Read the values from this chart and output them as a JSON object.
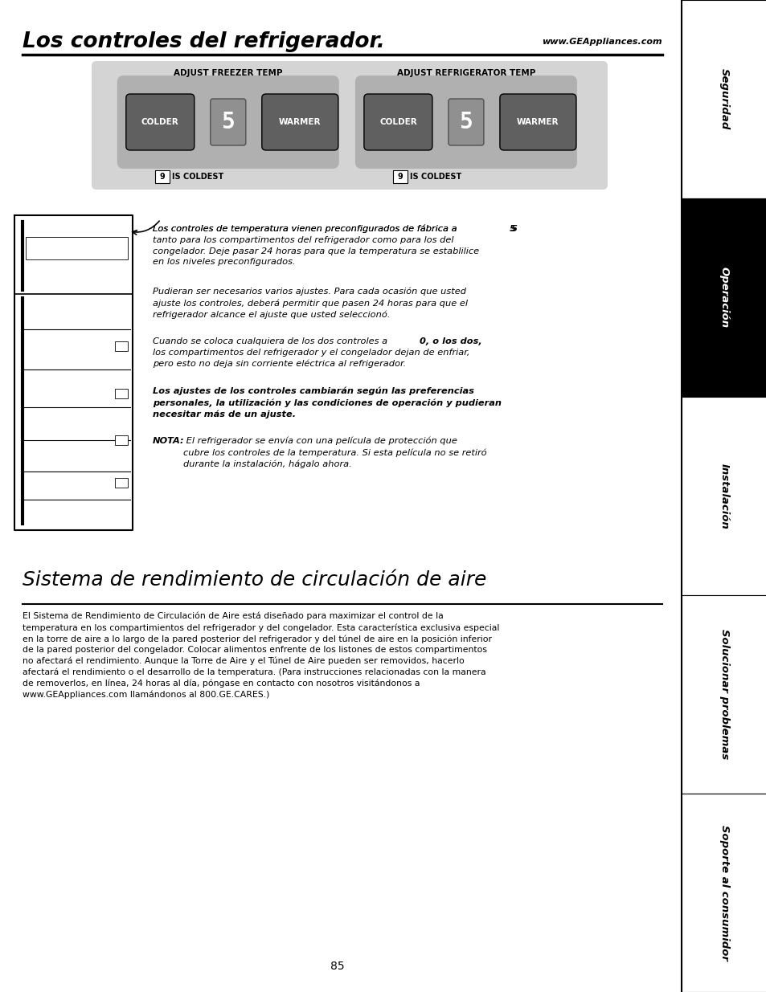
{
  "title": "Los controles del refrigerador.",
  "website": "www.GEAppliances.com",
  "section_title2": "Sistema de rendimiento de circulación de aire",
  "page_number": "85",
  "sidebar_labels": [
    "Seguridad",
    "Operación",
    "Instalación",
    "Solucionar problemas",
    "Soporte al consumidor"
  ],
  "sidebar_active": 1,
  "panel_bg": "#d4d4d4",
  "panel_inner_bg": "#b0b0b0",
  "button_bg": "#606060",
  "freezer_label": "ADJUST FREEZER TEMP",
  "fridge_label": "ADJUST REFRIGERATOR TEMP",
  "body_text1a": "Los controles de temperatura vienen preconfigurados de fábrica a ",
  "body_text1b": "5",
  "body_text1c": "\ntanto para los compartimentos del refrigerador como para los del\ncongelador. Deje pasar 24 horas para que la temperatura se establilice\nen los niveles preconfigurados.",
  "body_text2": "Pudieran ser necesarios varios ajustes. Para cada ocasión que usted\najuste los controles, deberá permitir que pasen 24 horas para que el\nrefrigerador alcance el ajuste que usted seleccionó.",
  "body_text3a": "Cuando se coloca cualquiera de los dos controles a ",
  "body_text3b": "0",
  "body_text3c": ", o los dos,\nlos compartimentos del refrigerador y el congelador dejan de enfriar,\npero esto no deja sin corriente eléctrica al refrigerador.",
  "body_text4": "Los ajustes de los controles cambiarán según las preferencias\npersonales, la utilización y las condiciones de operación y pudieran\nnecesitar más de un ajuste.",
  "body_nota_bold": "NOTA:",
  "body_nota_rest": " El refrigerador se envía con una película de protección que\ncubre los controles de la temperatura. Si esta película no se retiró\ndurante la instalación, hágalo ahora.",
  "section2_text": "El Sistema de Rendimiento de Circulación de Aire está diseñado para maximizar el control de la\ntemperatura en los compartimientos del refrigerador y del congelador. Esta característica exclusiva especial\nen la torre de aire a lo largo de la pared posterior del refrigerador y del túnel de aire en la posición inferior\nde la pared posterior del congelador. Colocar alimentos enfrente de los listones de estos compartimentos\nno afectará el rendimiento. Aunque la Torre de Aire y el Túnel de Aire pueden ser removidos, hacerlo\nafectará el rendimiento o el desarrollo de la temperatura. (Para instrucciones relacionadas con la manera\nde removerlos, en línea, 24 horas al día, póngase en contacto con nosotros visitándonos a\nwww.GEAppliances.com llamándonos al 800.GE.CARES.)",
  "bg_color": "#ffffff"
}
